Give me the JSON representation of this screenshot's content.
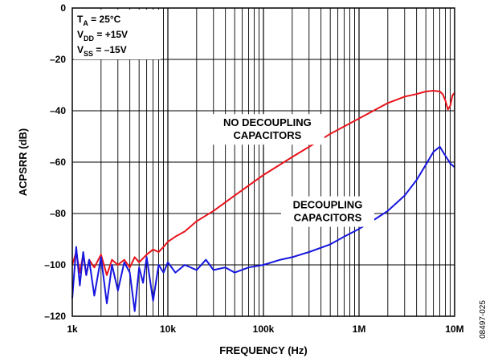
{
  "chart_data": {
    "type": "line",
    "xlabel": "FREQUENCY (Hz)",
    "ylabel": "ACPSRR (dB)",
    "xscale": "log",
    "xlim": [
      1000,
      10000000
    ],
    "ylim": [
      -120,
      0
    ],
    "xticks": [
      {
        "value": 1000,
        "label": "1k"
      },
      {
        "value": 10000,
        "label": "10k"
      },
      {
        "value": 100000,
        "label": "100k"
      },
      {
        "value": 1000000,
        "label": "1M"
      },
      {
        "value": 10000000,
        "label": "10M"
      }
    ],
    "yticks": [
      {
        "value": 0,
        "label": "0"
      },
      {
        "value": -20,
        "label": "–20"
      },
      {
        "value": -40,
        "label": "–40"
      },
      {
        "value": -60,
        "label": "–60"
      },
      {
        "value": -80,
        "label": "–80"
      },
      {
        "value": -100,
        "label": "–100"
      },
      {
        "value": -120,
        "label": "–120"
      }
    ],
    "grid": true,
    "conditions": [
      {
        "main": "T",
        "sub": "A",
        "rest": " = 25°C"
      },
      {
        "main": "V",
        "sub": "DD",
        "rest": " = +15V"
      },
      {
        "main": "V",
        "sub": "SS",
        "rest": " = –15V"
      }
    ],
    "series": [
      {
        "name": "NO DECOUPLING CAPACITORS",
        "label_lines": [
          "NO DECOUPLING",
          "CAPACITORS"
        ],
        "color": "#e8141c",
        "x": [
          1000,
          1100,
          1200,
          1300,
          1400,
          1500,
          1700,
          2000,
          2300,
          2600,
          3000,
          3500,
          4000,
          4500,
          5000,
          6000,
          7000,
          8000,
          9000,
          10000,
          12000,
          15000,
          20000,
          30000,
          50000,
          100000,
          200000,
          500000,
          1000000,
          2000000,
          3000000,
          4000000,
          5000000,
          6000000,
          7000000,
          7500000,
          8000000,
          8500000,
          9000000,
          9500000,
          10000000
        ],
        "y": [
          -100,
          -95,
          -103,
          -96,
          -104,
          -98,
          -101,
          -96,
          -104,
          -98,
          -100,
          -98,
          -101,
          -97,
          -99,
          -96,
          -94,
          -95,
          -93,
          -91,
          -89,
          -87,
          -83,
          -79,
          -73,
          -65,
          -58,
          -49,
          -43,
          -37,
          -34.5,
          -33.5,
          -32.5,
          -32.2,
          -32.5,
          -33.5,
          -36,
          -39.5,
          -38,
          -34,
          -33
        ]
      },
      {
        "name": "DECOUPLING CAPACITORS",
        "label_lines": [
          "DECOUPLING",
          "CAPACITORS"
        ],
        "color": "#1616e0",
        "x": [
          1000,
          1100,
          1200,
          1300,
          1400,
          1500,
          1700,
          2000,
          2300,
          2600,
          3000,
          3500,
          4000,
          4500,
          5000,
          5500,
          6000,
          7000,
          8000,
          9000,
          10000,
          12000,
          15000,
          20000,
          25000,
          30000,
          40000,
          50000,
          70000,
          100000,
          150000,
          200000,
          300000,
          500000,
          700000,
          1000000,
          1500000,
          2000000,
          3000000,
          4000000,
          5000000,
          6000000,
          7000000,
          8000000,
          9000000,
          10000000
        ],
        "y": [
          -113,
          -93,
          -108,
          -95,
          -104,
          -98,
          -112,
          -97,
          -115,
          -100,
          -110,
          -99,
          -103,
          -118,
          -101,
          -107,
          -97,
          -114,
          -100,
          -103,
          -99,
          -103,
          -100,
          -102,
          -98,
          -102,
          -101,
          -103,
          -101,
          -100,
          -98,
          -97,
          -95,
          -92,
          -89,
          -86,
          -82,
          -79,
          -73,
          -67,
          -61,
          -56,
          -54,
          -57.5,
          -60.5,
          -62
        ]
      }
    ],
    "figure_id": "08497-025"
  }
}
